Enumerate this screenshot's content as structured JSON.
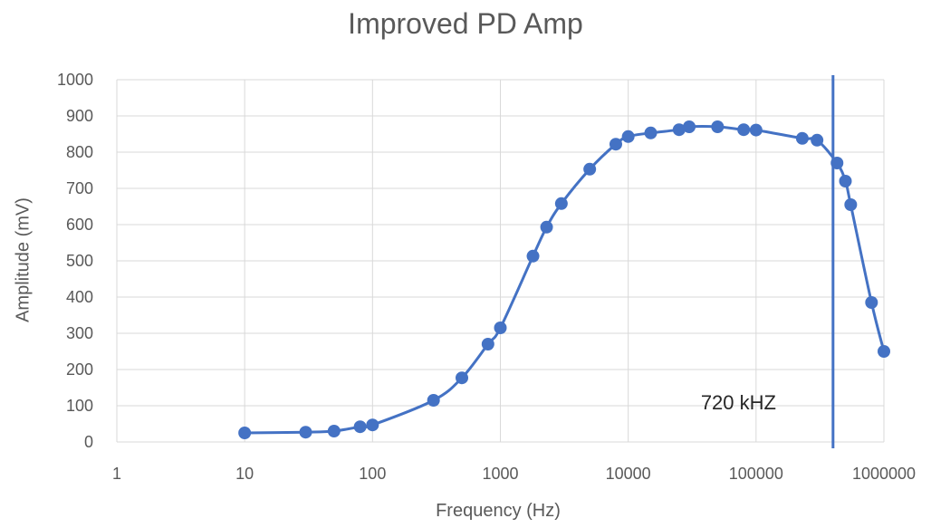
{
  "chart_data": {
    "type": "scatter",
    "title": "Improved PD Amp",
    "xlabel": "Frequency (Hz)",
    "ylabel": "Amplitude (mV)",
    "xscale": "log",
    "xlim": [
      1,
      1000000
    ],
    "ylim": [
      0,
      1000
    ],
    "grid": true,
    "x_tick_labels": [
      "1",
      "10",
      "100",
      "1000",
      "10000",
      "100000",
      "1000000"
    ],
    "y_tick_labels": [
      "0",
      "100",
      "200",
      "300",
      "400",
      "500",
      "600",
      "700",
      "800",
      "900",
      "1000"
    ],
    "series": [
      {
        "color": "#4472c4",
        "points": [
          {
            "x": 10,
            "y": 25
          },
          {
            "x": 30,
            "y": 27
          },
          {
            "x": 50,
            "y": 30
          },
          {
            "x": 80,
            "y": 42
          },
          {
            "x": 100,
            "y": 47
          },
          {
            "x": 300,
            "y": 115
          },
          {
            "x": 500,
            "y": 177
          },
          {
            "x": 800,
            "y": 270
          },
          {
            "x": 1000,
            "y": 315
          },
          {
            "x": 1800,
            "y": 513
          },
          {
            "x": 2300,
            "y": 593
          },
          {
            "x": 3000,
            "y": 658
          },
          {
            "x": 5000,
            "y": 753
          },
          {
            "x": 8000,
            "y": 822
          },
          {
            "x": 10000,
            "y": 843
          },
          {
            "x": 15000,
            "y": 853
          },
          {
            "x": 25000,
            "y": 862
          },
          {
            "x": 30000,
            "y": 870
          },
          {
            "x": 50000,
            "y": 870
          },
          {
            "x": 80000,
            "y": 862
          },
          {
            "x": 100000,
            "y": 861
          },
          {
            "x": 230000,
            "y": 838
          },
          {
            "x": 300000,
            "y": 833
          },
          {
            "x": 430000,
            "y": 770
          },
          {
            "x": 500000,
            "y": 720
          },
          {
            "x": 550000,
            "y": 655
          },
          {
            "x": 800000,
            "y": 385
          },
          {
            "x": 1000000,
            "y": 250
          }
        ]
      }
    ],
    "annotations": [
      {
        "text": "720 kHZ",
        "line_x": 400000,
        "line_color": "#4472c4"
      }
    ]
  }
}
